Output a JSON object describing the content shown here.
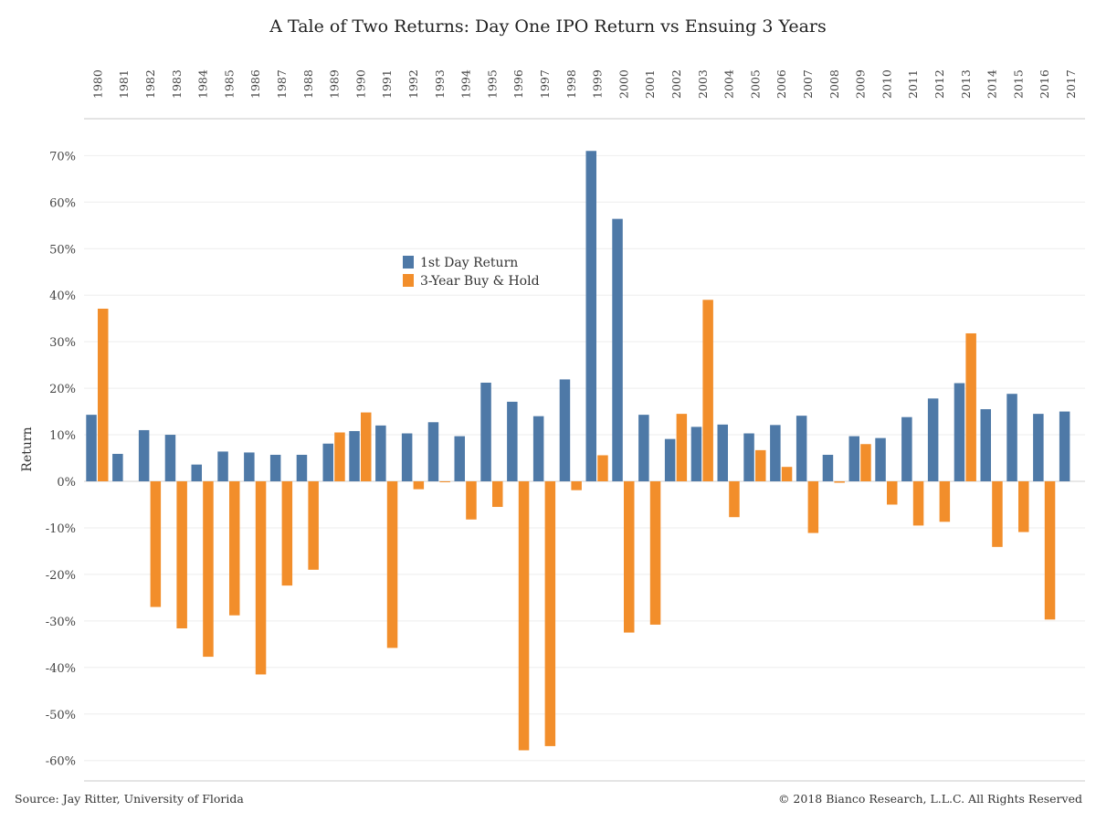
{
  "footer": {
    "source": "Source: Jay Ritter, University of Florida",
    "copyright": "© 2018 Bianco Research, L.L.C. All Rights Reserved"
  },
  "chart_data": {
    "type": "bar",
    "title": "A Tale of Two Returns: Day One IPO Return vs Ensuing 3 Years",
    "ylabel": "Return",
    "xlabel": "",
    "ylim": [
      -0.65,
      0.75
    ],
    "yticks": [
      0.7,
      0.6,
      0.5,
      0.4,
      0.3,
      0.2,
      0.1,
      0.0,
      -0.1,
      -0.2,
      -0.3,
      -0.4,
      -0.5,
      -0.6
    ],
    "ytick_labels": [
      "70%",
      "60%",
      "50%",
      "40%",
      "30%",
      "20%",
      "10%",
      "0%",
      "-10%",
      "-20%",
      "-30%",
      "-40%",
      "-50%",
      "-60%"
    ],
    "categories": [
      "1980",
      "1981",
      "1982",
      "1983",
      "1984",
      "1985",
      "1986",
      "1987",
      "1988",
      "1989",
      "1990",
      "1991",
      "1992",
      "1993",
      "1994",
      "1995",
      "1996",
      "1997",
      "1998",
      "1999",
      "2000",
      "2001",
      "2002",
      "2003",
      "2004",
      "2005",
      "2006",
      "2007",
      "2008",
      "2009",
      "2010",
      "2011",
      "2012",
      "2013",
      "2014",
      "2015",
      "2016",
      "2017"
    ],
    "category_axis_position": "top",
    "grid": true,
    "legend_position": "upper-center",
    "series": [
      {
        "name": "1st Day Return",
        "color": "#4e79a7",
        "values": [
          0.143,
          0.059,
          0.11,
          0.1,
          0.036,
          0.064,
          0.062,
          0.057,
          0.057,
          0.081,
          0.108,
          0.12,
          0.103,
          0.127,
          0.097,
          0.212,
          0.171,
          0.14,
          0.219,
          0.71,
          0.564,
          0.143,
          0.091,
          0.117,
          0.122,
          0.103,
          0.121,
          0.141,
          0.057,
          0.097,
          0.093,
          0.138,
          0.178,
          0.211,
          0.155,
          0.188,
          0.145,
          0.15
        ]
      },
      {
        "name": "3-Year Buy & Hold",
        "color": "#f28e2b",
        "values": [
          0.371,
          null,
          -0.27,
          -0.316,
          -0.377,
          -0.288,
          -0.415,
          -0.224,
          -0.19,
          0.105,
          0.148,
          -0.358,
          -0.017,
          -0.002,
          -0.082,
          -0.055,
          -0.578,
          -0.569,
          -0.019,
          0.056,
          -0.325,
          -0.308,
          0.145,
          0.39,
          -0.077,
          0.067,
          0.031,
          -0.111,
          -0.003,
          0.08,
          -0.05,
          -0.095,
          -0.087,
          0.318,
          -0.141,
          -0.109,
          -0.297,
          null
        ]
      }
    ]
  }
}
